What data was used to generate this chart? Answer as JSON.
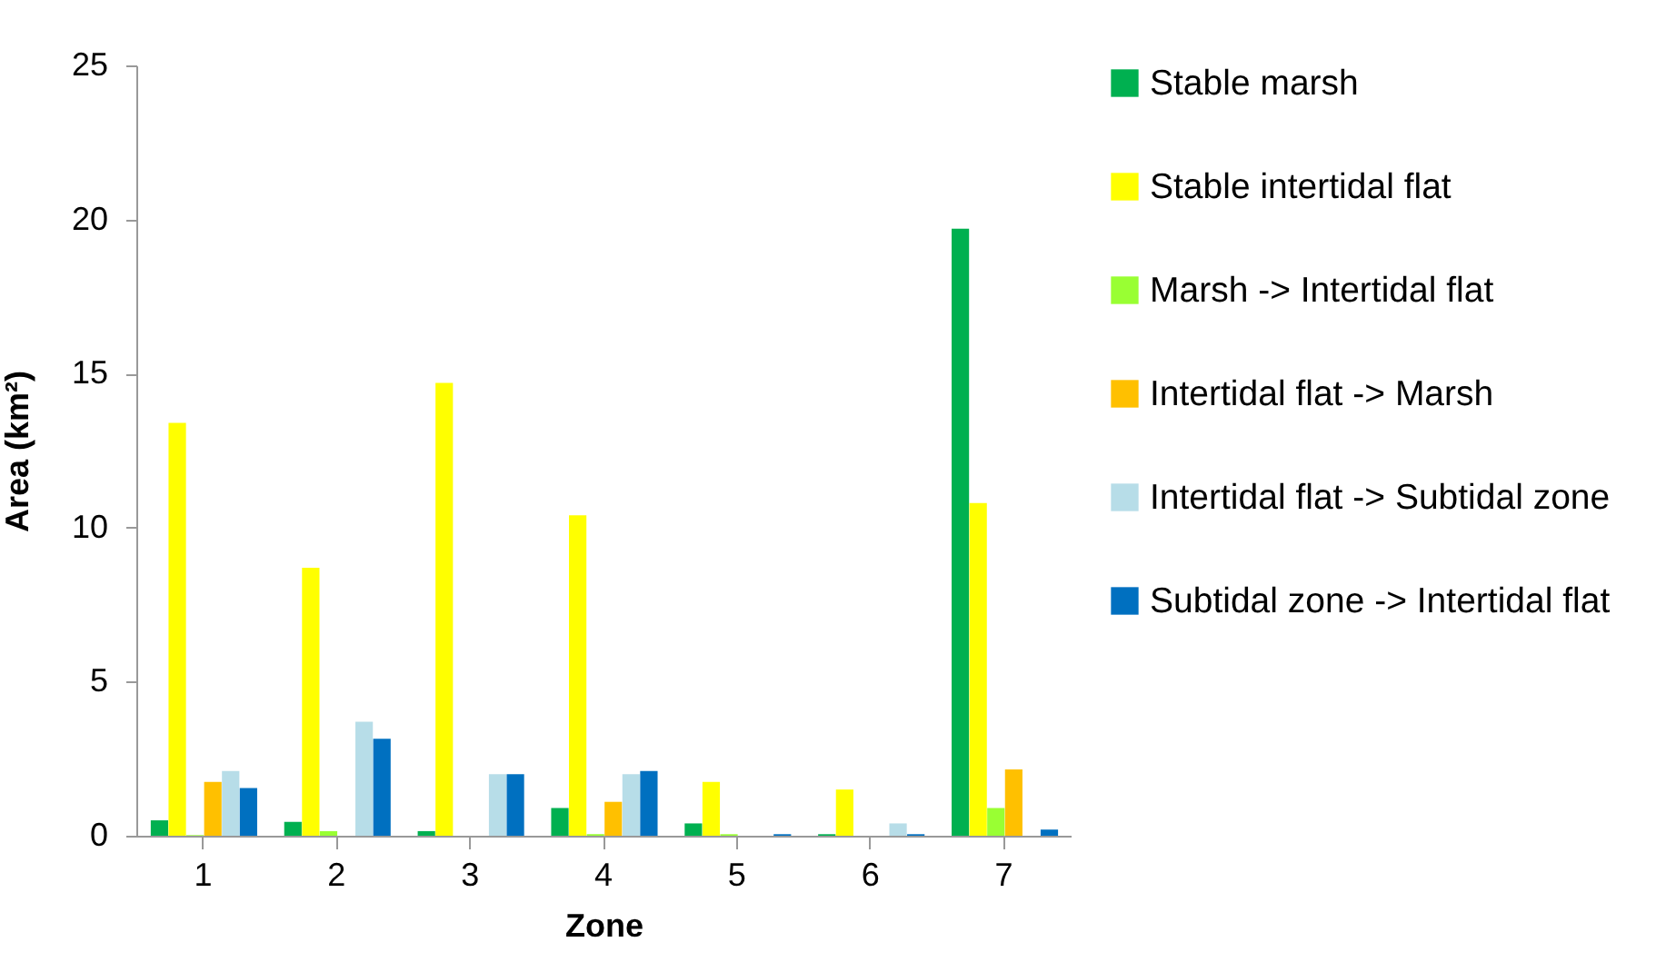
{
  "chart_data": {
    "type": "bar",
    "xlabel": "Zone",
    "ylabel": "Area (km²)",
    "categories": [
      "1",
      "2",
      "3",
      "4",
      "5",
      "6",
      "7"
    ],
    "series": [
      {
        "name": "Stable marsh",
        "color": "#00b050",
        "values": [
          0.5,
          0.45,
          0.15,
          0.9,
          0.4,
          0.05,
          19.7
        ]
      },
      {
        "name": "Stable intertidal flat",
        "color": "#ffff00",
        "values": [
          13.4,
          8.7,
          14.7,
          10.4,
          1.75,
          1.5,
          10.8
        ]
      },
      {
        "name": "Marsh -> Intertidal flat",
        "color": "#99ff33",
        "values": [
          0.02,
          0.15,
          0,
          0.05,
          0.05,
          0,
          0.9
        ]
      },
      {
        "name": "Intertidal flat -> Marsh",
        "color": "#ffc000",
        "values": [
          1.75,
          0,
          0,
          1.1,
          0,
          0,
          2.15
        ]
      },
      {
        "name": "Intertidal flat -> Subtidal zone",
        "color": "#b7dde8",
        "values": [
          2.1,
          3.7,
          2.0,
          2.0,
          null,
          0.4,
          null
        ]
      },
      {
        "name": "Subtidal zone -> Intertidal flat",
        "color": "#0070c0",
        "values": [
          1.55,
          3.15,
          2.0,
          2.1,
          0.05,
          0.05,
          0.2
        ]
      }
    ],
    "ylim": [
      0,
      25
    ],
    "yticks": [
      0,
      5,
      10,
      15,
      20,
      25
    ],
    "grid": false,
    "legend": "right"
  }
}
